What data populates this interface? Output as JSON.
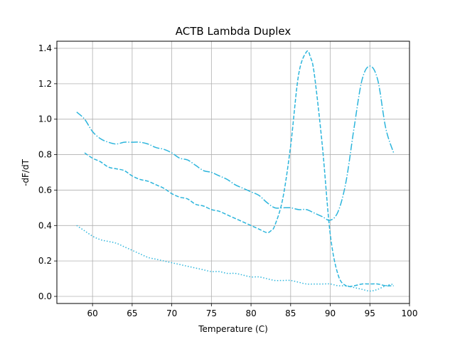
{
  "chart_data": {
    "type": "line",
    "title": "ACTB Lambda Duplex",
    "xlabel": "Temperature (C)",
    "ylabel": "-dF/dT",
    "xlim": [
      55.5,
      100
    ],
    "ylim": [
      -0.04,
      1.44
    ],
    "xticks": [
      60,
      65,
      70,
      75,
      80,
      85,
      90,
      95,
      100
    ],
    "yticks": [
      0.0,
      0.2,
      0.4,
      0.6,
      0.8,
      1.0,
      1.2,
      1.4
    ],
    "grid": true,
    "legend": "none",
    "color": "#2cb5dc",
    "series": [
      {
        "style": "dashed",
        "x": [
          59,
          60,
          61,
          62,
          63,
          64,
          65,
          66,
          67,
          68,
          69,
          70,
          71,
          72,
          73,
          74,
          75,
          76,
          77,
          78,
          79,
          80,
          81,
          82,
          82.5,
          83,
          84,
          85,
          86,
          87,
          87.5,
          88,
          89,
          90,
          91,
          92,
          93,
          94,
          95,
          96,
          97,
          98
        ],
        "y": [
          0.81,
          0.78,
          0.76,
          0.73,
          0.72,
          0.71,
          0.68,
          0.66,
          0.65,
          0.63,
          0.61,
          0.58,
          0.56,
          0.55,
          0.52,
          0.51,
          0.49,
          0.48,
          0.46,
          0.44,
          0.42,
          0.4,
          0.38,
          0.36,
          0.37,
          0.4,
          0.55,
          0.85,
          1.25,
          1.38,
          1.35,
          1.25,
          0.85,
          0.35,
          0.12,
          0.06,
          0.06,
          0.07,
          0.07,
          0.07,
          0.06,
          0.06
        ]
      },
      {
        "style": "dashdot",
        "x": [
          58,
          59,
          60,
          61,
          62,
          63,
          64,
          65,
          66,
          67,
          68,
          69,
          70,
          71,
          72,
          73,
          74,
          75,
          76,
          77,
          78,
          79,
          80,
          81,
          82,
          83,
          84,
          85,
          86,
          87,
          88,
          89,
          90,
          91,
          92,
          93,
          94,
          95,
          96,
          97,
          98
        ],
        "y": [
          1.04,
          1.0,
          0.93,
          0.89,
          0.87,
          0.86,
          0.87,
          0.87,
          0.87,
          0.86,
          0.84,
          0.83,
          0.81,
          0.78,
          0.77,
          0.74,
          0.71,
          0.7,
          0.68,
          0.66,
          0.63,
          0.61,
          0.59,
          0.57,
          0.53,
          0.5,
          0.5,
          0.5,
          0.49,
          0.49,
          0.47,
          0.45,
          0.43,
          0.48,
          0.65,
          0.95,
          1.22,
          1.3,
          1.22,
          0.95,
          0.81
        ]
      },
      {
        "style": "dotted",
        "x": [
          58,
          59,
          60,
          61,
          62,
          63,
          64,
          65,
          66,
          67,
          68,
          69,
          70,
          71,
          72,
          73,
          74,
          75,
          76,
          77,
          78,
          79,
          80,
          81,
          82,
          83,
          84,
          85,
          86,
          87,
          88,
          89,
          90,
          91,
          92,
          93,
          94,
          95,
          96,
          97,
          98
        ],
        "y": [
          0.4,
          0.37,
          0.34,
          0.32,
          0.31,
          0.3,
          0.28,
          0.26,
          0.24,
          0.22,
          0.21,
          0.2,
          0.19,
          0.18,
          0.17,
          0.16,
          0.15,
          0.14,
          0.14,
          0.13,
          0.13,
          0.12,
          0.11,
          0.11,
          0.1,
          0.09,
          0.09,
          0.09,
          0.08,
          0.07,
          0.07,
          0.07,
          0.07,
          0.06,
          0.06,
          0.05,
          0.04,
          0.03,
          0.04,
          0.06,
          0.07
        ]
      }
    ]
  }
}
